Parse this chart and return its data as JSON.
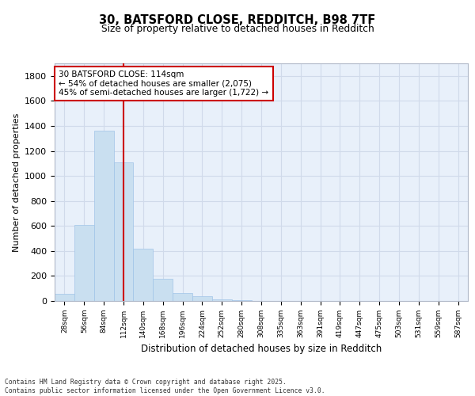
{
  "title_line1": "30, BATSFORD CLOSE, REDDITCH, B98 7TF",
  "title_line2": "Size of property relative to detached houses in Redditch",
  "xlabel": "Distribution of detached houses by size in Redditch",
  "ylabel": "Number of detached properties",
  "bar_values": [
    57,
    610,
    1360,
    1110,
    420,
    175,
    65,
    35,
    10,
    5,
    0,
    0,
    0,
    0,
    0,
    0,
    0,
    0,
    0,
    0,
    0
  ],
  "bar_labels": [
    "28sqm",
    "56sqm",
    "84sqm",
    "112sqm",
    "140sqm",
    "168sqm",
    "196sqm",
    "224sqm",
    "252sqm",
    "280sqm",
    "308sqm",
    "335sqm",
    "363sqm",
    "391sqm",
    "419sqm",
    "447sqm",
    "475sqm",
    "503sqm",
    "531sqm",
    "559sqm",
    "587sqm"
  ],
  "bar_color": "#c9dff0",
  "bar_edge_color": "#a0c4e8",
  "grid_color": "#d0daea",
  "background_color": "#e8f0fa",
  "red_line_x": 3,
  "annotation_box_text": "30 BATSFORD CLOSE: 114sqm\n← 54% of detached houses are smaller (2,075)\n45% of semi-detached houses are larger (1,722) →",
  "annotation_box_color": "#ffffff",
  "annotation_box_edge_color": "#cc0000",
  "red_line_color": "#cc0000",
  "ylim": [
    0,
    1900
  ],
  "yticks": [
    0,
    200,
    400,
    600,
    800,
    1000,
    1200,
    1400,
    1600,
    1800
  ],
  "footer_line1": "Contains HM Land Registry data © Crown copyright and database right 2025.",
  "footer_line2": "Contains public sector information licensed under the Open Government Licence v3.0."
}
